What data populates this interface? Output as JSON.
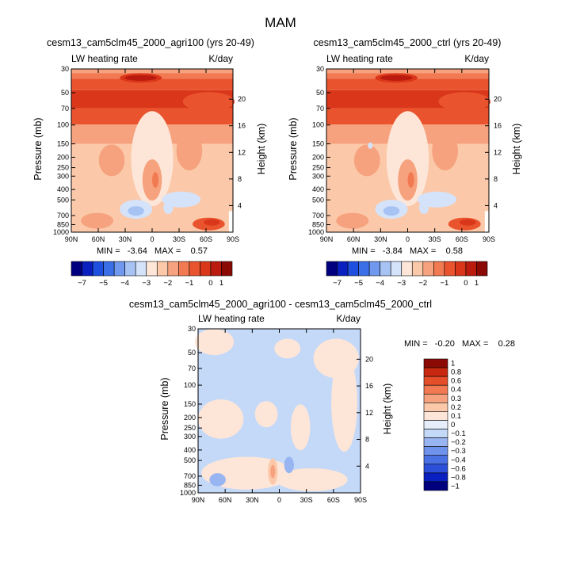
{
  "title": "MAM",
  "colors": {
    "levels": [
      "#00007f",
      "#0a1fbf",
      "#1f4fdf",
      "#3a6fe8",
      "#6f98ee",
      "#a6c3f4",
      "#d4e3fa",
      "#fde6d8",
      "#fbc9a9",
      "#f7a27e",
      "#f27a52",
      "#e9542e",
      "#d9361a",
      "#bb1b0e",
      "#8b0a05"
    ],
    "diff": [
      "#00007f",
      "#0a1fbf",
      "#2b4fd8",
      "#4a71e3",
      "#6f93ec",
      "#98b5f2",
      "#c4d8f8",
      "#e6eefc",
      "#fde6d8",
      "#fbc9a9",
      "#f7a27e",
      "#f27a52",
      "#e44f2a",
      "#c7280f",
      "#8b0a05"
    ]
  },
  "chart_data": [
    {
      "type": "heatmap",
      "title": "cesm13_cam5clm45_2000_agri100 (yrs 20-49)",
      "left_string": "LW heating rate",
      "right_string": "K/day",
      "ylabel": "Pressure (mb)",
      "y2label": "Height (km)",
      "x_ticks": [
        "90N",
        "60N",
        "30N",
        "0",
        "30S",
        "60S",
        "90S"
      ],
      "y_ticks": [
        "30",
        "50",
        "70",
        "100",
        "150",
        "200",
        "250",
        "300",
        "400",
        "500",
        "700",
        "850",
        "1000"
      ],
      "y2_ticks": [
        "20",
        "16",
        "12",
        "8",
        "4"
      ],
      "ylim": [
        1000,
        30
      ],
      "stats": "MIN =   -3.64   MAX =    0.57",
      "colorbar_labels": [
        "-7",
        "-5",
        "-4",
        "-3",
        "-2",
        "-1",
        "0",
        "1"
      ]
    },
    {
      "type": "heatmap",
      "title": "cesm13_cam5clm45_2000_ctrl (yrs 20-49)",
      "left_string": "LW heating rate",
      "right_string": "K/day",
      "ylabel": "Pressure (mb)",
      "y2label": "Height (km)",
      "x_ticks": [
        "90N",
        "60N",
        "30N",
        "0",
        "30S",
        "60S",
        "90S"
      ],
      "y_ticks": [
        "30",
        "50",
        "70",
        "100",
        "150",
        "200",
        "250",
        "300",
        "400",
        "500",
        "700",
        "850",
        "1000"
      ],
      "y2_ticks": [
        "20",
        "16",
        "12",
        "8",
        "4"
      ],
      "ylim": [
        1000,
        30
      ],
      "stats": "MIN =   -3.84   MAX =    0.58",
      "colorbar_labels": [
        "-7",
        "-5",
        "-4",
        "-3",
        "-2",
        "-1",
        "0",
        "1"
      ]
    },
    {
      "type": "heatmap",
      "title": "cesm13_cam5clm45_2000_agri100 - cesm13_cam5clm45_2000_ctrl",
      "left_string": "LW heating rate",
      "right_string": "K/day",
      "ylabel": "Pressure (mb)",
      "y2label": "Height (km)",
      "x_ticks": [
        "90N",
        "60N",
        "30N",
        "0",
        "30S",
        "60S",
        "90S"
      ],
      "y_ticks": [
        "30",
        "50",
        "70",
        "100",
        "150",
        "200",
        "250",
        "300",
        "400",
        "500",
        "700",
        "850",
        "1000"
      ],
      "y2_ticks": [
        "20",
        "16",
        "12",
        "8",
        "4"
      ],
      "ylim": [
        1000,
        30
      ],
      "stats": "MIN =   -0.20   MAX =    0.28",
      "colorbar_labels": [
        "1",
        "0.8",
        "0.6",
        "0.4",
        "0.3",
        "0.2",
        "0.1",
        "0",
        "-0.1",
        "-0.2",
        "-0.3",
        "-0.4",
        "-0.6",
        "-0.8",
        "-1"
      ]
    }
  ]
}
